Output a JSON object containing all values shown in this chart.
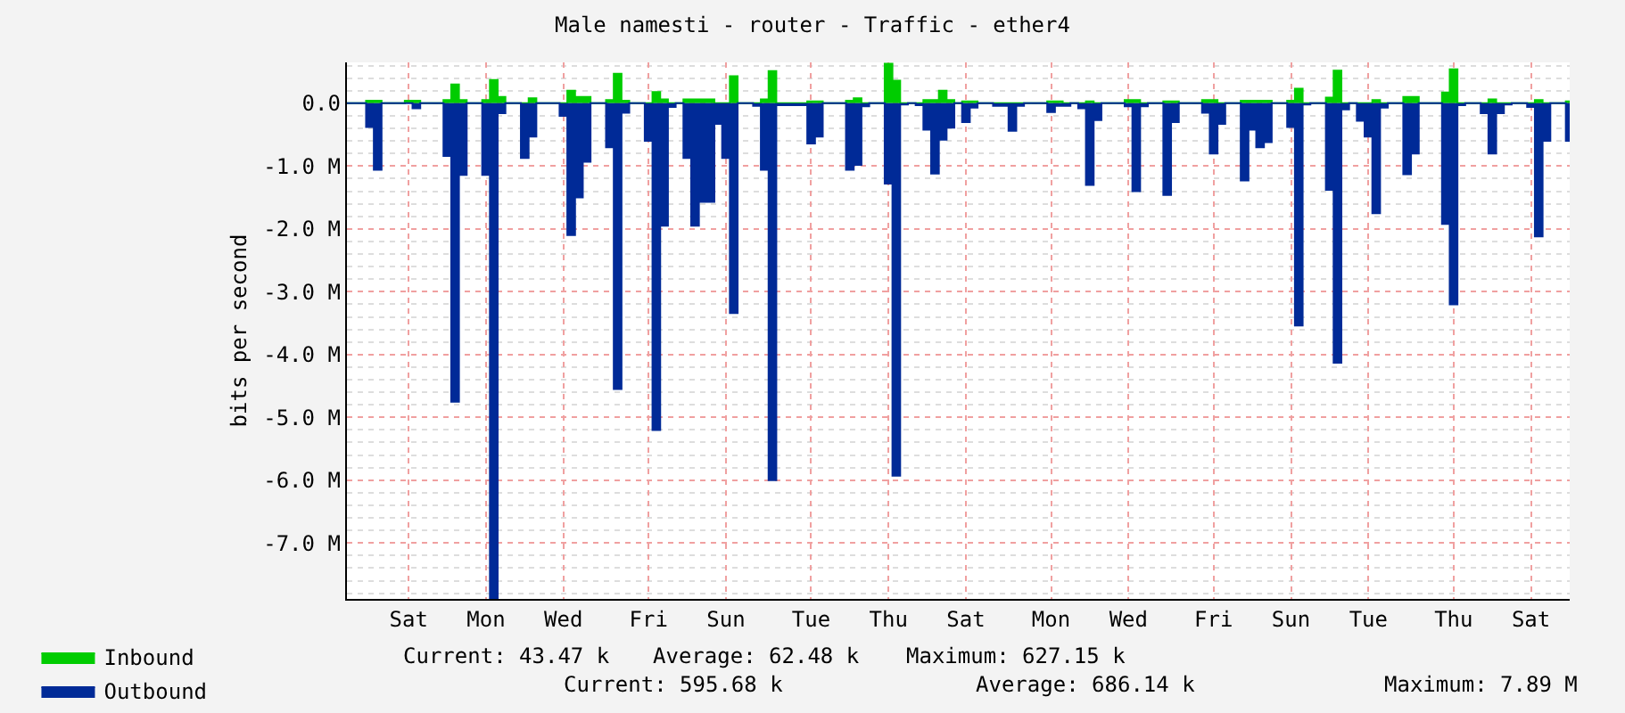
{
  "chart_data": {
    "type": "area",
    "title": "Male namesti - router - Traffic - ether4",
    "ylabel": "bits per second",
    "categories": [
      null,
      null,
      null,
      null,
      null,
      null,
      null,
      null,
      "Sat",
      null,
      null,
      null,
      null,
      null,
      null,
      null,
      null,
      null,
      "Mon",
      null,
      null,
      null,
      null,
      null,
      null,
      null,
      null,
      null,
      "Wed",
      null,
      null,
      null,
      null,
      null,
      null,
      null,
      null,
      null,
      null,
      "Fri",
      null,
      null,
      null,
      null,
      null,
      null,
      null,
      null,
      null,
      "Sun",
      null,
      null,
      null,
      null,
      null,
      null,
      null,
      null,
      null,
      null,
      "Tue",
      null,
      null,
      null,
      null,
      null,
      null,
      null,
      null,
      null,
      "Thu",
      null,
      null,
      null,
      null,
      null,
      null,
      null,
      null,
      null,
      "Sat",
      null,
      null,
      null,
      null,
      null,
      null,
      null,
      null,
      null,
      null,
      "Mon",
      null,
      null,
      null,
      null,
      null,
      null,
      null,
      null,
      null,
      "Wed",
      null,
      null,
      null,
      null,
      null,
      null,
      null,
      null,
      null,
      null,
      "Fri",
      null,
      null,
      null,
      null,
      null,
      null,
      null,
      null,
      null,
      "Sun",
      null,
      null,
      null,
      null,
      null,
      null,
      null,
      null,
      null,
      "Tue",
      null,
      null,
      null,
      null,
      null,
      null,
      null,
      null,
      null,
      null,
      "Thu",
      null,
      null,
      null,
      null,
      null,
      null,
      null,
      null,
      null,
      "Sat",
      null,
      null,
      null,
      null,
      null
    ],
    "ylim": [
      -7.89,
      0.65
    ],
    "yticks": [
      {
        "value": 0,
        "label": "0.0"
      },
      {
        "value": -1,
        "label": "-1.0 M"
      },
      {
        "value": -2,
        "label": "-2.0 M"
      },
      {
        "value": -3,
        "label": "-3.0 M"
      },
      {
        "value": -4,
        "label": "-4.0 M"
      },
      {
        "value": -5,
        "label": "-5.0 M"
      },
      {
        "value": -6,
        "label": "-6.0 M"
      },
      {
        "value": -7,
        "label": "-7.0 M"
      }
    ],
    "grid": true,
    "legend": "bottom left",
    "series": [
      {
        "name": "Inbound",
        "color": "#00cc00",
        "values": [
          0,
          0,
          0,
          0.04,
          0.04,
          0,
          0,
          0,
          0.04,
          0.04,
          0,
          0,
          0,
          0.05,
          0.3,
          0.05,
          0,
          0,
          0.05,
          0.37,
          0.1,
          0,
          0,
          0,
          0.08,
          0,
          0,
          0,
          0,
          0.2,
          0.1,
          0.1,
          0,
          0,
          0.05,
          0.47,
          0.04,
          0,
          0,
          0,
          0.18,
          0.06,
          0,
          0,
          0.06,
          0.06,
          0.06,
          0.06,
          0,
          0,
          0.43,
          0,
          0,
          0,
          0.06,
          0.51,
          0,
          0,
          0,
          0,
          0.03,
          0.03,
          0,
          0,
          0,
          0.04,
          0.08,
          0,
          0,
          0,
          0.63,
          0.36,
          0,
          0,
          0,
          0.05,
          0.05,
          0.2,
          0.05,
          0,
          0.03,
          0.03,
          0,
          0,
          0,
          0,
          0,
          0,
          0,
          0,
          0,
          0.03,
          0.03,
          0,
          0,
          0,
          0.03,
          0,
          0,
          0,
          0,
          0.05,
          0.05,
          0,
          0,
          0,
          0.03,
          0.03,
          0,
          0,
          0,
          0.05,
          0.05,
          0,
          0,
          0,
          0.04,
          0.04,
          0.04,
          0.04,
          0,
          0,
          0.04,
          0.23,
          0,
          0,
          0,
          0.09,
          0.52,
          0,
          0,
          0,
          0,
          0.05,
          0,
          0,
          0,
          0.1,
          0.1,
          0,
          0,
          0,
          0.17,
          0.54,
          0,
          0,
          0,
          0,
          0.06,
          0,
          0,
          0,
          0,
          0,
          0.05,
          0,
          0,
          0,
          0.03
        ]
      },
      {
        "name": "Outbound",
        "color": "#002a97",
        "values": [
          0,
          0,
          0,
          -0.38,
          -1.06,
          0,
          0,
          0,
          0,
          -0.08,
          0,
          0,
          0,
          -0.84,
          -4.75,
          -1.14,
          0,
          0,
          -1.14,
          -7.89,
          -0.16,
          0,
          0,
          -0.87,
          -0.53,
          0,
          0,
          0,
          -0.2,
          -2.1,
          -1.5,
          -0.93,
          0,
          0,
          -0.7,
          -4.55,
          -0.15,
          0,
          0,
          -0.6,
          -5.2,
          -1.95,
          -0.06,
          0,
          -0.87,
          -1.95,
          -1.57,
          -1.57,
          -0.33,
          -0.87,
          -3.34,
          0,
          0,
          -0.04,
          -1.06,
          -6.0,
          -0.03,
          -0.03,
          -0.03,
          -0.03,
          -0.64,
          -0.53,
          0,
          0,
          0,
          -1.06,
          -0.98,
          -0.05,
          0,
          0,
          -1.28,
          -5.93,
          -0.02,
          0,
          -0.03,
          -0.42,
          -1.12,
          -0.58,
          -0.39,
          0,
          -0.3,
          -0.07,
          0,
          0,
          -0.04,
          -0.04,
          -0.44,
          -0.04,
          0,
          0,
          0,
          -0.14,
          -0.04,
          -0.04,
          0,
          -0.08,
          -1.3,
          -0.27,
          0,
          0,
          0,
          -0.05,
          -1.4,
          -0.05,
          0,
          0,
          -1.46,
          -0.3,
          0,
          0,
          0,
          -0.15,
          -0.8,
          -0.33,
          0,
          0,
          -1.23,
          -0.42,
          -0.7,
          -0.62,
          0,
          0,
          -0.38,
          -3.54,
          -0.02,
          0,
          0,
          -1.38,
          -4.13,
          -0.1,
          0,
          -0.28,
          -0.53,
          -1.75,
          -0.07,
          0,
          0,
          -1.13,
          -0.8,
          0,
          0,
          0,
          -1.92,
          -3.2,
          -0.03,
          0,
          0,
          -0.16,
          -0.8,
          -0.16,
          -0.02,
          0,
          0,
          -0.06,
          -2.12,
          -0.6,
          0,
          0,
          -0.6
        ]
      }
    ],
    "annotations": [
      "Current: 43.47 k",
      "Average: 62.48 k",
      "Maximum: 627.15 k",
      "Current: 595.68 k",
      "Average: 686.14 k",
      "Maximum: 7.89 M"
    ]
  }
}
